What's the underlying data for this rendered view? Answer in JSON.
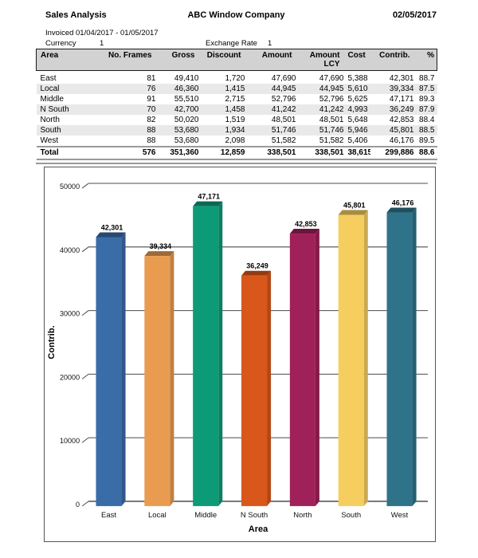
{
  "report": {
    "title": "Sales Analysis",
    "company": "ABC Window Company",
    "date": "02/05/2017",
    "invoiced_period": "Invoiced 01/04/2017 - 01/05/2017",
    "currency_label": "Currency",
    "currency_value": "1",
    "exchange_rate_label": "Exchange Rate",
    "exchange_rate_value": "1"
  },
  "table": {
    "columns": [
      "Area",
      "No. Frames",
      "Gross",
      "Discount",
      "Amount",
      "Amount LCY",
      "Cost",
      "Contrib.",
      "%"
    ],
    "rows": [
      [
        "East",
        "81",
        "49,410",
        "1,720",
        "47,690",
        "47,690",
        "5,388",
        "42,301",
        "88.7"
      ],
      [
        "Local",
        "76",
        "46,360",
        "1,415",
        "44,945",
        "44,945",
        "5,610",
        "39,334",
        "87.5"
      ],
      [
        "Middle",
        "91",
        "55,510",
        "2,715",
        "52,796",
        "52,796",
        "5,625",
        "47,171",
        "89.3"
      ],
      [
        "N South",
        "70",
        "42,700",
        "1,458",
        "41,242",
        "41,242",
        "4,993",
        "36,249",
        "87.9"
      ],
      [
        "North",
        "82",
        "50,020",
        "1,519",
        "48,501",
        "48,501",
        "5,648",
        "42,853",
        "88.4"
      ],
      [
        "South",
        "88",
        "53,680",
        "1,934",
        "51,746",
        "51,746",
        "5,946",
        "45,801",
        "88.5"
      ],
      [
        "West",
        "88",
        "53,680",
        "2,098",
        "51,582",
        "51,582",
        "5,406",
        "46,176",
        "89.5"
      ]
    ],
    "total": [
      "Total",
      "576",
      "351,360",
      "12,859",
      "338,501",
      "338,501",
      "38,615",
      "299,886",
      "88.6"
    ]
  },
  "chart_data": {
    "type": "bar",
    "categories": [
      "East",
      "Local",
      "Middle",
      "N South",
      "North",
      "South",
      "West"
    ],
    "values": [
      42301,
      39334,
      47171,
      36249,
      42853,
      45801,
      46176
    ],
    "value_labels": [
      "42,301",
      "39,334",
      "47,171",
      "36,249",
      "42,853",
      "45,801",
      "46,176"
    ],
    "bar_colors": [
      "#3A6CA8",
      "#E99C50",
      "#0D9B77",
      "#D9571B",
      "#A02159",
      "#F6CE60",
      "#2E7389"
    ],
    "title": "",
    "xlabel": "Area",
    "ylabel": "Contrib.",
    "ylim": [
      0,
      50000
    ],
    "ytick_interval": 10000,
    "yticks": [
      "0",
      "10000",
      "20000",
      "30000",
      "40000",
      "50000"
    ],
    "grid": true,
    "legend": "none",
    "style": "3d-extruded-bars",
    "gridline_color": "#4b4b4b"
  }
}
